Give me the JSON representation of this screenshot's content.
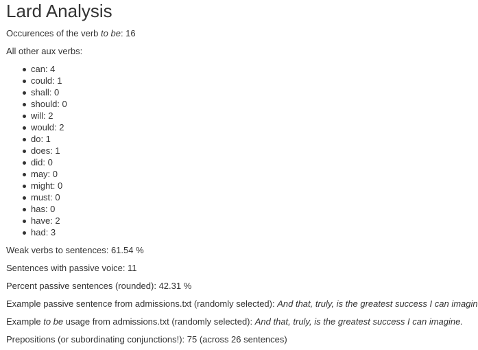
{
  "title": "Lard Analysis",
  "tobe": {
    "prefix": "Occurences of the verb ",
    "verb": "to be",
    "suffix": ": 16"
  },
  "aux_heading": "All other aux verbs:",
  "aux_verbs": [
    {
      "label": "can: 4"
    },
    {
      "label": "could: 1"
    },
    {
      "label": "shall: 0"
    },
    {
      "label": "should: 0"
    },
    {
      "label": "will: 2"
    },
    {
      "label": "would: 2"
    },
    {
      "label": "do: 1"
    },
    {
      "label": "does: 1"
    },
    {
      "label": "did: 0"
    },
    {
      "label": "may: 0"
    },
    {
      "label": "might: 0"
    },
    {
      "label": "must: 0"
    },
    {
      "label": "has: 0"
    },
    {
      "label": "have: 2"
    },
    {
      "label": "had: 3"
    }
  ],
  "stats": {
    "weak_verbs": "Weak verbs to sentences: 61.54 %",
    "passive_count": "Sentences with passive voice: 11",
    "passive_percent": "Percent passive sentences (rounded): 42.31 %",
    "passive_example_label": "Example passive sentence from admissions.txt (randomly selected): ",
    "passive_example_text": "And that, truly, is the greatest success I can imagine.",
    "tobe_example_prefix": "Example ",
    "tobe_example_verb": "to be",
    "tobe_example_label": " usage from admissions.txt (randomly selected): ",
    "tobe_example_text": "And that, truly, is the greatest success I can imagine.",
    "prepositions": "Prepositions (or subordinating conjunctions!): 75 (across 26 sentences)"
  }
}
